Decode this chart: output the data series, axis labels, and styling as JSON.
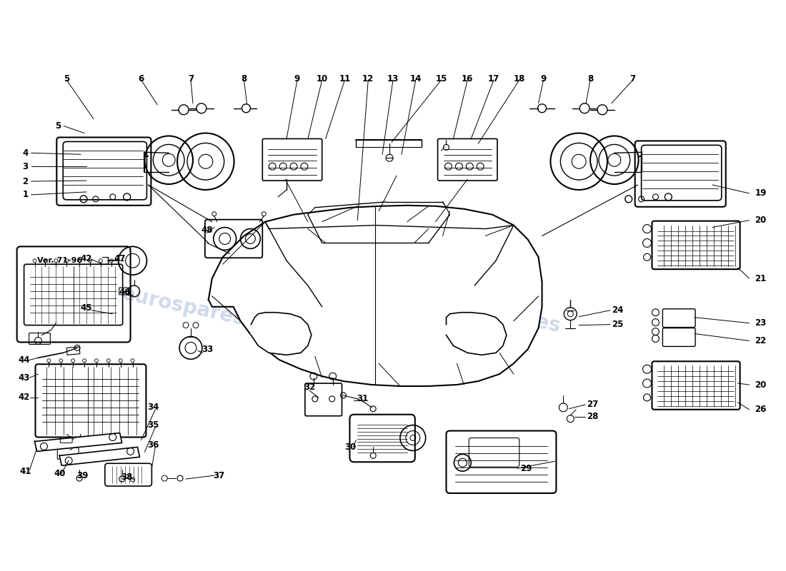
{
  "background_color": "#ffffff",
  "line_color": "#000000",
  "watermark_color": "#c8d4e8",
  "fig_width": 11.0,
  "fig_height": 8.0,
  "dpi": 100,
  "labels": {
    "top_row": [
      [
        "5",
        90,
        105
      ],
      [
        "6",
        195,
        105
      ],
      [
        "7",
        265,
        105
      ],
      [
        "8",
        340,
        105
      ],
      [
        "9",
        415,
        105
      ],
      [
        "10",
        450,
        105
      ],
      [
        "11",
        485,
        105
      ],
      [
        "12",
        515,
        105
      ],
      [
        "13",
        555,
        105
      ],
      [
        "14",
        590,
        105
      ],
      [
        "15",
        625,
        105
      ],
      [
        "16",
        660,
        105
      ],
      [
        "17",
        700,
        105
      ],
      [
        "18",
        730,
        105
      ],
      [
        "9",
        765,
        105
      ],
      [
        "8",
        830,
        105
      ],
      [
        "7",
        890,
        105
      ]
    ],
    "right_col": [
      [
        "19",
        1055,
        270
      ],
      [
        "20",
        1055,
        308
      ],
      [
        "21",
        1055,
        390
      ],
      [
        "23",
        1055,
        453
      ],
      [
        "22",
        1055,
        478
      ],
      [
        "20",
        1055,
        540
      ],
      [
        "26",
        1055,
        575
      ]
    ],
    "mid_right": [
      [
        "24",
        855,
        435
      ],
      [
        "25",
        855,
        455
      ],
      [
        "27",
        820,
        570
      ],
      [
        "28",
        820,
        590
      ],
      [
        "29",
        735,
        660
      ]
    ],
    "left_col": [
      [
        "1",
        30,
        270
      ],
      [
        "2",
        30,
        250
      ],
      [
        "3",
        30,
        230
      ],
      [
        "4",
        30,
        210
      ],
      [
        "5",
        75,
        170
      ]
    ],
    "bottom_left": [
      [
        "47",
        168,
        360
      ],
      [
        "46",
        170,
        408
      ],
      [
        "45",
        115,
        430
      ],
      [
        "42",
        35,
        460
      ],
      [
        "48",
        290,
        320
      ],
      [
        "44",
        35,
        505
      ],
      [
        "43",
        35,
        530
      ],
      [
        "42",
        35,
        555
      ],
      [
        "33",
        285,
        495
      ],
      [
        "41",
        35,
        660
      ],
      [
        "40",
        80,
        665
      ],
      [
        "39",
        110,
        665
      ],
      [
        "38",
        175,
        668
      ],
      [
        "37",
        310,
        668
      ],
      [
        "36",
        230,
        628
      ],
      [
        "35",
        220,
        600
      ],
      [
        "34",
        220,
        575
      ]
    ],
    "bottom_center": [
      [
        "32",
        435,
        545
      ],
      [
        "31",
        510,
        565
      ],
      [
        "30",
        510,
        630
      ]
    ],
    "inset": [
      [
        "Ver. 71-96",
        85,
        368
      ]
    ]
  }
}
